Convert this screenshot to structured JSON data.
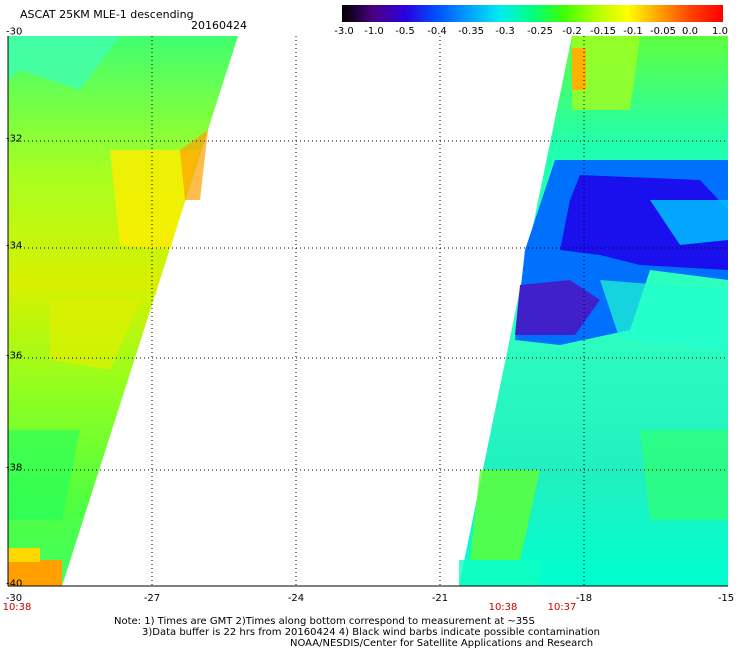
{
  "header": {
    "title": "ASCAT 25KM MLE-1 descending",
    "date": "20160424"
  },
  "colorbar": {
    "labels": [
      "-3.0",
      "-1.0",
      "-0.5",
      "-0.4",
      "-0.35",
      "-0.3",
      "-0.25",
      "-0.2",
      "-0.15",
      "-0.1",
      "-0.05",
      "0.0",
      "1.0"
    ],
    "colors": [
      "#000000",
      "#4b0082",
      "#2a00e0",
      "#0050ff",
      "#00a0ff",
      "#00eeee",
      "#00ff80",
      "#40ff00",
      "#b0ff00",
      "#ffff00",
      "#ffa000",
      "#ff4000",
      "#ff0000"
    ]
  },
  "axes": {
    "lat_labels": [
      "-30",
      "-32",
      "-34",
      "-36",
      "-38",
      "-40"
    ],
    "lon_labels": [
      "-30",
      "-27",
      "-24",
      "-21",
      "-18",
      "-15"
    ]
  },
  "swath_times": {
    "left": "10:38",
    "right_a": "10:38",
    "right_b": "10:37"
  },
  "notes": {
    "line1": "Note: 1) Times are GMT 2)Times along bottom correspond to measurement at ~35S",
    "line2": "3)Data buffer is 22 hrs from 20160424 4) Black wind barbs indicate possible contamination",
    "line3": "NOAA/NESDIS/Center for Satellite Applications and Research"
  },
  "map": {
    "region": {
      "lat_min": -40,
      "lat_max": -30,
      "lon_min": -30,
      "lon_max": -15
    },
    "grid": "dotted",
    "swaths": [
      "left",
      "right"
    ]
  }
}
